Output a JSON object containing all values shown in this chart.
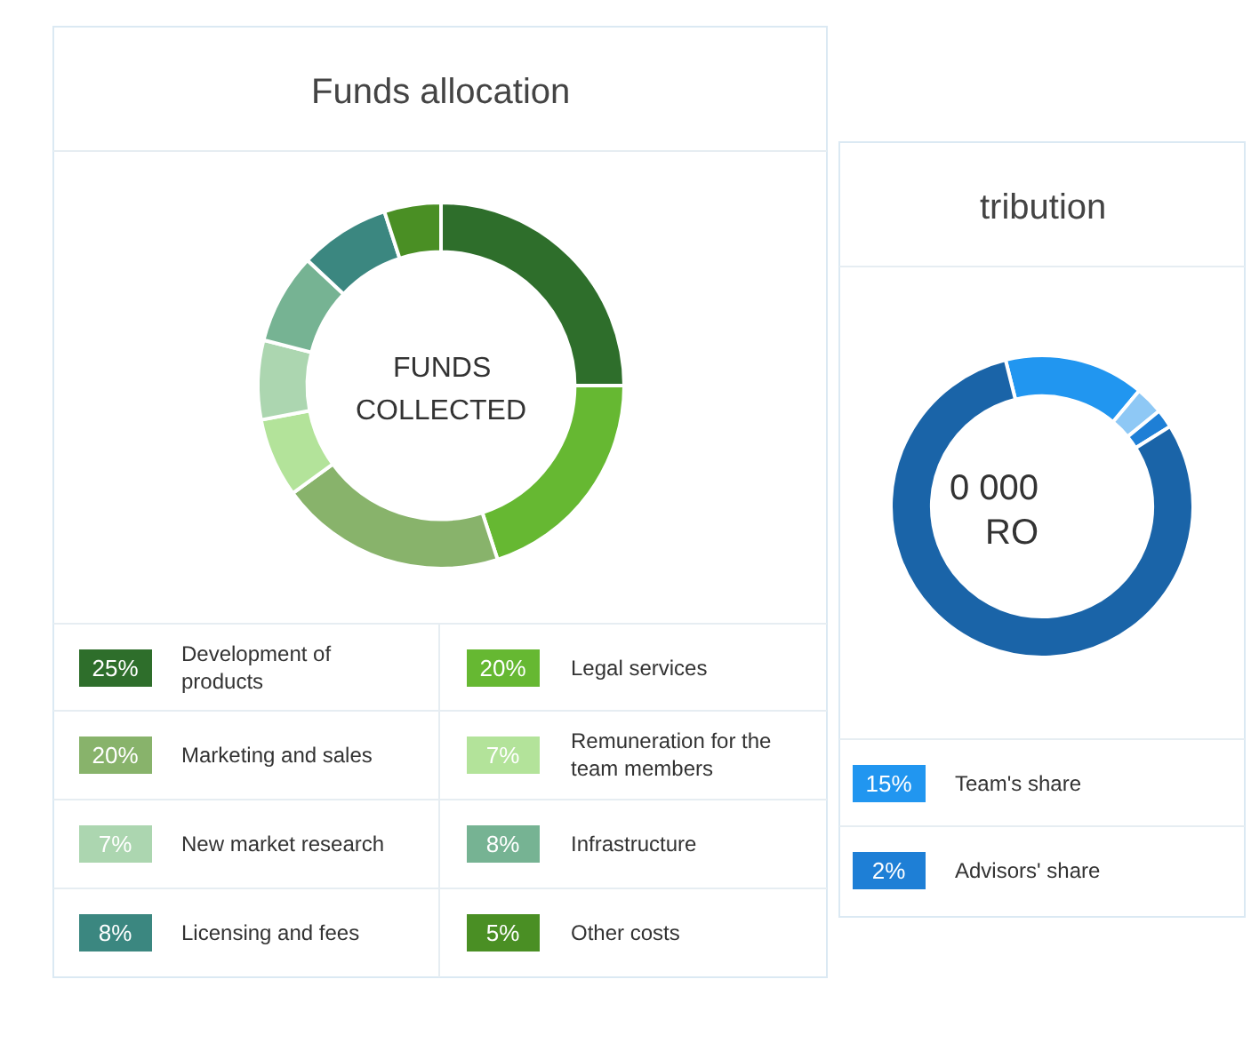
{
  "chart_data": [
    {
      "type": "donut",
      "title": "Funds allocation",
      "legend": "bottom",
      "annotations": [
        "FUNDS",
        "COLLECTED"
      ],
      "categories": [
        "Development of products",
        "Legal services",
        "Marketing and sales",
        "Remuneration for the team members",
        "New market research",
        "Infrastructure",
        "Licensing and fees",
        "Other costs"
      ],
      "values": [
        25,
        20,
        20,
        7,
        7,
        8,
        8,
        5
      ],
      "value_labels": [
        "25%",
        "20%",
        "20%",
        "7%",
        "7%",
        "8%",
        "8%",
        "5%"
      ],
      "colors": [
        "#2e6e2b",
        "#66b832",
        "#88b36b",
        "#b3e39a",
        "#acd6b0",
        "#76b393",
        "#3b8780",
        "#4a8f24"
      ]
    },
    {
      "type": "donut",
      "title": "tribution",
      "legend": "bottom",
      "annotations": [
        "0 000",
        "RO"
      ],
      "categories": [
        "Team's share",
        null,
        "Advisors' share",
        null
      ],
      "values": [
        15,
        3,
        2,
        80
      ],
      "value_labels": [
        "15%",
        null,
        "2%",
        null
      ],
      "colors": [
        "#2196f0",
        "#8ec8f5",
        "#1e7fd6",
        "#1a64a8"
      ]
    }
  ]
}
